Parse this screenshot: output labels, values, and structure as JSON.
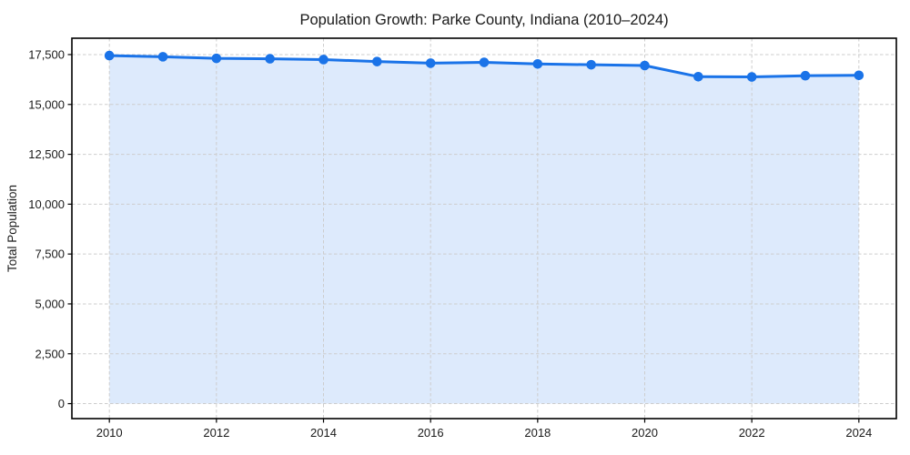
{
  "chart_data": {
    "type": "area",
    "title": "Population Growth: Parke County, Indiana (2010–2024)",
    "xlabel": "",
    "ylabel": "Total Population",
    "x": [
      2010,
      2011,
      2012,
      2013,
      2014,
      2015,
      2016,
      2017,
      2018,
      2019,
      2020,
      2021,
      2022,
      2023,
      2024
    ],
    "series": [
      {
        "name": "Total Population",
        "values": [
          17450,
          17390,
          17310,
          17290,
          17250,
          17150,
          17070,
          17110,
          17030,
          16990,
          16950,
          16390,
          16380,
          16440,
          16460
        ]
      }
    ],
    "x_ticks": [
      2010,
      2012,
      2014,
      2016,
      2018,
      2020,
      2022,
      2024
    ],
    "x_tick_labels": [
      "2010",
      "2012",
      "2014",
      "2016",
      "2018",
      "2020",
      "2022",
      "2024"
    ],
    "y_ticks": [
      0,
      2500,
      5000,
      7500,
      10000,
      12500,
      15000,
      17500
    ],
    "y_tick_labels": [
      "0",
      "2,500",
      "5,000",
      "7,500",
      "10,000",
      "12,500",
      "15,000",
      "17,500"
    ],
    "xlim": [
      2009.3,
      2024.7
    ],
    "ylim": [
      -750,
      18320
    ],
    "grid": true,
    "grid_style": "dashed",
    "legend_position": "none",
    "baseline_value": 0,
    "fill_opacity": 0.15,
    "colors": {
      "line": "#1a73e8",
      "marker": "#1a73e8",
      "fill": "#1a73e8",
      "grid": "#cdcdcd",
      "frame": "#000000",
      "text": "#1a1a1a",
      "background": "#ffffff"
    }
  }
}
